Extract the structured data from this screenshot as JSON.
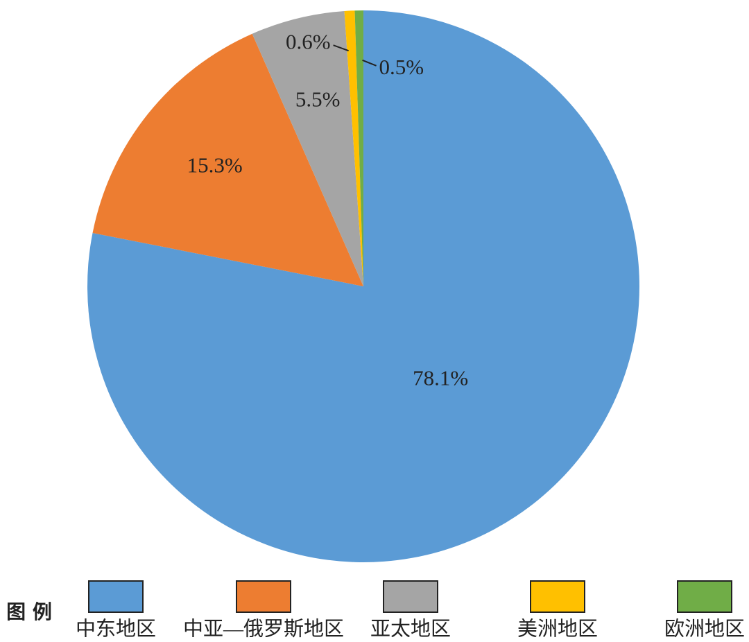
{
  "chart_data": {
    "type": "pie",
    "categories": [
      "中东地区",
      "中亚—俄罗斯地区",
      "亚太地区",
      "美洲地区",
      "欧洲地区"
    ],
    "values": [
      78.1,
      15.3,
      5.5,
      0.6,
      0.5
    ],
    "value_labels": [
      "78.1%",
      "15.3%",
      "5.5%",
      "0.6%",
      "0.5%"
    ],
    "colors": [
      "#5b9bd5",
      "#ed7d31",
      "#a5a5a5",
      "#ffc000",
      "#70ad47"
    ],
    "legend_title": "图 例",
    "legend": "bottom"
  }
}
